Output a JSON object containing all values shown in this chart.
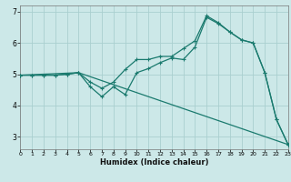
{
  "xlabel": "Humidex (Indice chaleur)",
  "bg_color": "#cce8e8",
  "grid_color": "#aacfcf",
  "line_color": "#1a7a6e",
  "xlim": [
    0,
    23
  ],
  "ylim": [
    2.6,
    7.2
  ],
  "xticks": [
    0,
    1,
    2,
    3,
    4,
    5,
    6,
    7,
    8,
    9,
    10,
    11,
    12,
    13,
    14,
    15,
    16,
    17,
    18,
    19,
    20,
    21,
    22,
    23
  ],
  "yticks": [
    3,
    4,
    5,
    6,
    7
  ],
  "curve1_x": [
    0,
    1,
    2,
    3,
    4,
    5,
    6,
    7,
    8,
    9,
    10,
    11,
    12,
    13,
    14,
    15,
    16,
    17,
    18,
    19,
    20,
    21,
    22,
    23
  ],
  "curve1_y": [
    4.97,
    4.97,
    4.97,
    4.97,
    5.0,
    5.05,
    4.75,
    4.55,
    4.75,
    5.15,
    5.47,
    5.47,
    5.57,
    5.57,
    5.82,
    6.07,
    6.87,
    6.65,
    6.35,
    6.1,
    6.0,
    5.05,
    3.55,
    2.75
  ],
  "curve2_x": [
    0,
    1,
    2,
    3,
    4,
    5,
    6,
    7,
    8,
    9,
    10,
    11,
    12,
    13,
    14,
    15,
    16,
    17,
    18,
    19,
    20,
    21,
    22,
    23
  ],
  "curve2_y": [
    4.97,
    4.97,
    4.97,
    4.97,
    5.0,
    5.05,
    4.6,
    4.28,
    4.6,
    4.35,
    5.05,
    5.18,
    5.37,
    5.52,
    5.47,
    5.87,
    6.82,
    6.62,
    6.35,
    6.1,
    6.0,
    5.05,
    3.55,
    2.75
  ],
  "curve3_x": [
    0,
    5,
    23
  ],
  "curve3_y": [
    4.97,
    5.05,
    2.75
  ]
}
